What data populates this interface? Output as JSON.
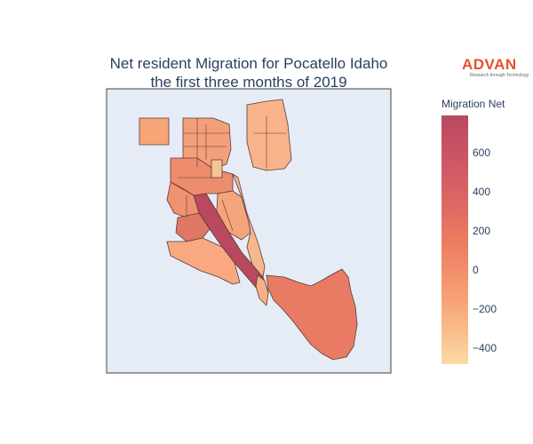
{
  "title": {
    "line1": "Net resident Migration for Pocatello Idaho",
    "line2": "the first three months of 2019"
  },
  "logo": {
    "name": "ADVAN",
    "tagline": "Research through Technology"
  },
  "colorbar": {
    "title": "Migration Net",
    "ticks": [
      "600",
      "400",
      "200",
      "0",
      "−200",
      "−400"
    ],
    "tick_values": [
      600,
      400,
      200,
      0,
      -200,
      -400
    ],
    "range": [
      -480,
      790
    ],
    "colors": [
      "#fcd9a3",
      "#f7a477",
      "#ec7a60",
      "#d45c66",
      "#b9495f"
    ]
  },
  "map": {
    "background": "#e5ecf6",
    "border": "#333333"
  }
}
